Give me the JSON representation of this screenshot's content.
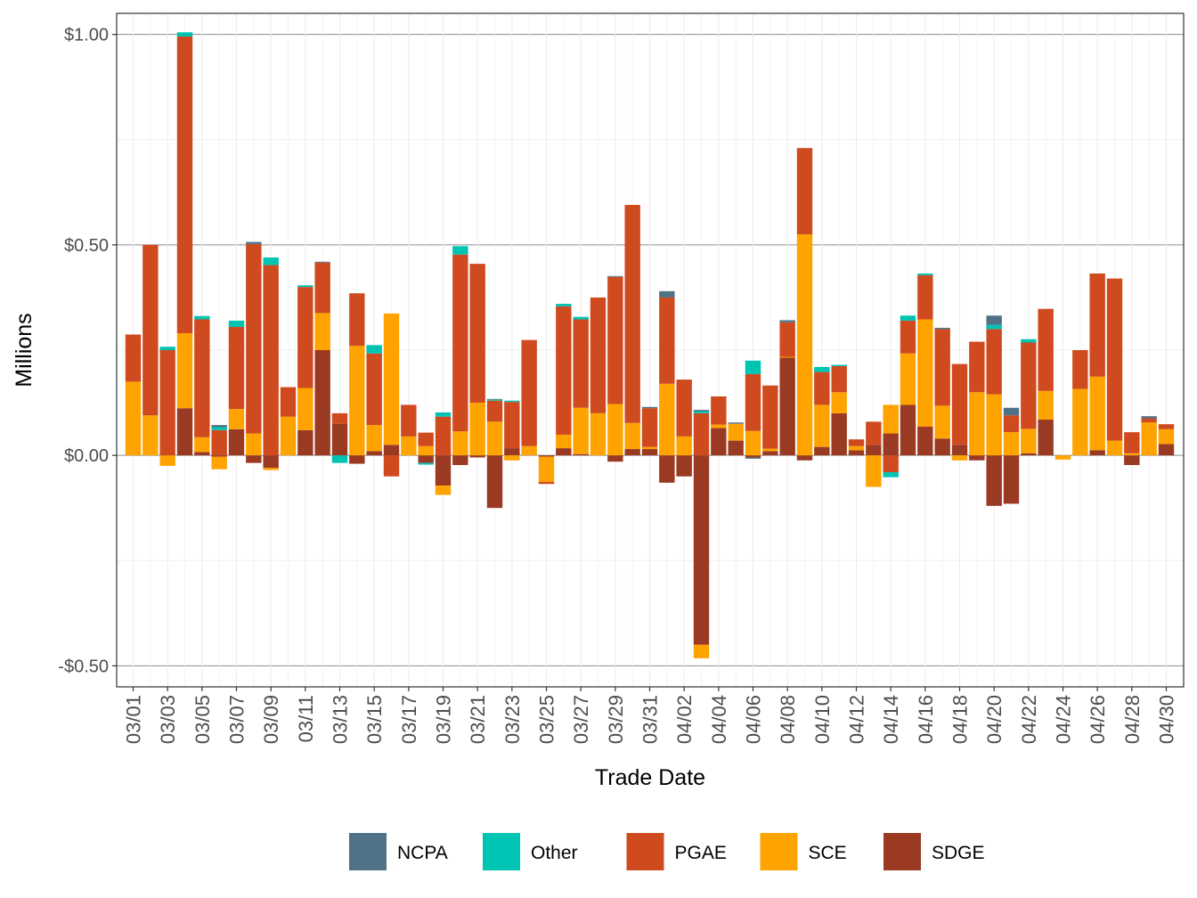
{
  "chart_data": {
    "type": "bar",
    "stacked": true,
    "title": "",
    "xlabel": "Trade Date",
    "ylabel": "Millions",
    "ylim": [
      -0.55,
      1.05
    ],
    "y_ticks": [
      {
        "value": 1.0,
        "label": "$1.00"
      },
      {
        "value": 0.5,
        "label": "$0.50"
      },
      {
        "value": 0.0,
        "label": "$0.00"
      },
      {
        "value": -0.5,
        "label": "-$0.50"
      }
    ],
    "categories": [
      "03/01",
      "03/02",
      "03/03",
      "03/04",
      "03/05",
      "03/06",
      "03/07",
      "03/08",
      "03/09",
      "03/10",
      "03/11",
      "03/12",
      "03/13",
      "03/14",
      "03/15",
      "03/16",
      "03/17",
      "03/18",
      "03/19",
      "03/20",
      "03/21",
      "03/22",
      "03/23",
      "03/24",
      "03/25",
      "03/26",
      "03/27",
      "03/28",
      "03/29",
      "03/30",
      "03/31",
      "04/01",
      "04/02",
      "04/03",
      "04/04",
      "04/05",
      "04/06",
      "04/07",
      "04/08",
      "04/09",
      "04/10",
      "04/11",
      "04/12",
      "04/13",
      "04/14",
      "04/15",
      "04/16",
      "04/17",
      "04/18",
      "04/19",
      "04/20",
      "04/21",
      "04/22",
      "04/23",
      "04/24",
      "04/25",
      "04/26",
      "04/27",
      "04/28",
      "04/29",
      "04/30"
    ],
    "tick_labels": [
      "03/01",
      "03/03",
      "03/05",
      "03/07",
      "03/09",
      "03/11",
      "03/13",
      "03/15",
      "03/17",
      "03/19",
      "03/21",
      "03/23",
      "03/25",
      "03/27",
      "03/29",
      "03/31",
      "04/02",
      "04/04",
      "04/06",
      "04/08",
      "04/10",
      "04/12",
      "04/14",
      "04/16",
      "04/18",
      "04/20",
      "04/22",
      "04/24",
      "04/26",
      "04/28",
      "04/30"
    ],
    "series": [
      {
        "name": "SDGE",
        "color": "#9A3A23",
        "values": [
          0,
          0,
          0,
          0.112,
          0.008,
          -0.003,
          0.062,
          -0.018,
          -0.03,
          0,
          0.06,
          0.25,
          0.075,
          -0.02,
          0.01,
          0.025,
          0,
          -0.018,
          -0.072,
          -0.023,
          -0.005,
          -0.125,
          0.017,
          0,
          -0.003,
          0.017,
          0.003,
          0,
          -0.015,
          0.015,
          0.015,
          -0.065,
          -0.05,
          -0.45,
          0.065,
          0.035,
          -0.005,
          0.01,
          0.232,
          -0.012,
          0.02,
          0.1,
          0.012,
          0.025,
          0.052,
          0.12,
          0.068,
          0.04,
          0.025,
          -0.012,
          -0.12,
          -0.115,
          0.005,
          0.085,
          0,
          0,
          0.012,
          0,
          -0.023,
          0,
          0.027
        ]
      },
      {
        "name": "SCE",
        "color": "#FFA300",
        "values": [
          0.175,
          0.095,
          -0.025,
          0.178,
          0.035,
          -0.03,
          0.048,
          0.052,
          -0.005,
          0.092,
          0.1,
          0.088,
          0,
          0.26,
          0.062,
          0.312,
          0.045,
          0.022,
          -0.022,
          0.057,
          0.125,
          0.08,
          -0.012,
          0.022,
          -0.06,
          0.032,
          0.11,
          0.1,
          0.122,
          0.062,
          0.005,
          0.17,
          0.045,
          -0.032,
          0.008,
          0.04,
          0.058,
          0.006,
          0.002,
          0.525,
          0.1,
          0.05,
          0.01,
          -0.075,
          0.068,
          0.122,
          0.255,
          0.078,
          -0.012,
          0.15,
          0.145,
          0.055,
          0.058,
          0.068,
          -0.01,
          0.158,
          0.175,
          0.035,
          0.005,
          0.078,
          0.035
        ]
      },
      {
        "name": "PGAE",
        "color": "#D04A1F",
        "values": [
          0.112,
          0.405,
          0.25,
          0.705,
          0.28,
          0.06,
          0.195,
          0.45,
          0.452,
          0.07,
          0.24,
          0.12,
          0.025,
          0.125,
          0.17,
          -0.05,
          0.075,
          0.032,
          0.092,
          0.42,
          0.33,
          0.05,
          0.11,
          0.252,
          -0.005,
          0.305,
          0.21,
          0.275,
          0.302,
          0.518,
          0.092,
          0.205,
          0.135,
          0.1,
          0.067,
          0,
          0.135,
          0.15,
          0.082,
          0.205,
          0.078,
          0.062,
          0.016,
          0.055,
          -0.04,
          0.078,
          0.105,
          0.182,
          0.192,
          0.12,
          0.155,
          0.04,
          0.205,
          0.195,
          0,
          0.092,
          0.245,
          0.385,
          0.05,
          0.01,
          0.012
        ]
      },
      {
        "name": "Other",
        "color": "#00C4B3",
        "values": [
          0,
          0,
          0.008,
          0.01,
          0.008,
          0.007,
          0.015,
          0,
          0.018,
          0,
          0.004,
          0,
          -0.018,
          0,
          0.02,
          0,
          0,
          -0.004,
          0.01,
          0.02,
          0,
          0.002,
          0.003,
          0,
          0,
          0.006,
          0.006,
          0,
          0,
          0,
          0,
          0,
          0,
          0.005,
          0,
          0,
          0.032,
          0,
          0,
          0,
          0.012,
          0.003,
          0,
          0,
          -0.012,
          0.012,
          0.004,
          0,
          0,
          0,
          0.01,
          0,
          0.008,
          0,
          0,
          0,
          0,
          0,
          0,
          0,
          0
        ]
      },
      {
        "name": "NCPA",
        "color": "#4F7286",
        "values": [
          0,
          0,
          0,
          0,
          0,
          0.005,
          0,
          0.005,
          0,
          0,
          0,
          0.002,
          0,
          0,
          0,
          0,
          0,
          0,
          0,
          0,
          0,
          0.002,
          0,
          0,
          0,
          0,
          0,
          0,
          0.002,
          0,
          0.003,
          0.015,
          0,
          0.003,
          0,
          0.003,
          -0.003,
          0,
          0.005,
          0,
          0,
          0,
          0,
          0,
          0,
          0,
          0,
          0.003,
          0,
          0,
          0.022,
          0.018,
          0,
          0,
          0,
          0,
          0,
          0,
          0,
          0.005,
          0
        ]
      }
    ],
    "legend_position": "bottom",
    "legend_order": [
      "NCPA",
      "Other",
      "PGAE",
      "SCE",
      "SDGE"
    ],
    "grid": true
  }
}
